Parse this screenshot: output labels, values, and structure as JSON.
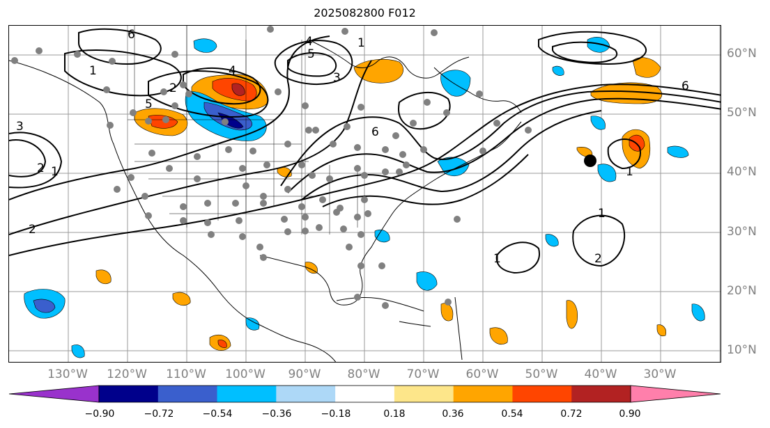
{
  "title": "2025082800 F012",
  "lat_labels": [
    "60°N",
    "50°N",
    "40°N",
    "30°N",
    "20°N",
    "10°N"
  ],
  "lon_labels": [
    "130°W",
    "120°W",
    "110°W",
    "100°W",
    "90°W",
    "80°W",
    "70°W",
    "60°W",
    "50°W",
    "40°W",
    "30°W"
  ],
  "contour_labels": [
    "6",
    "4",
    "5",
    "1",
    "3",
    "1",
    "4",
    "2",
    "5",
    "3",
    "6",
    "2",
    "1",
    "2",
    "1",
    "6",
    "1",
    "1",
    "2"
  ],
  "colorbar": {
    "ticks": [
      "−0.90",
      "−0.72",
      "−0.54",
      "−0.36",
      "−0.18",
      "0.18",
      "0.36",
      "0.54",
      "0.72",
      "0.90"
    ],
    "colors": [
      "#9932cc",
      "#00008b",
      "#3a5fcd",
      "#00bfff",
      "#add8f7",
      "#ffffff",
      "#fde68a",
      "#ffa500",
      "#ff4500",
      "#b22222",
      "#ff7fab"
    ]
  }
}
